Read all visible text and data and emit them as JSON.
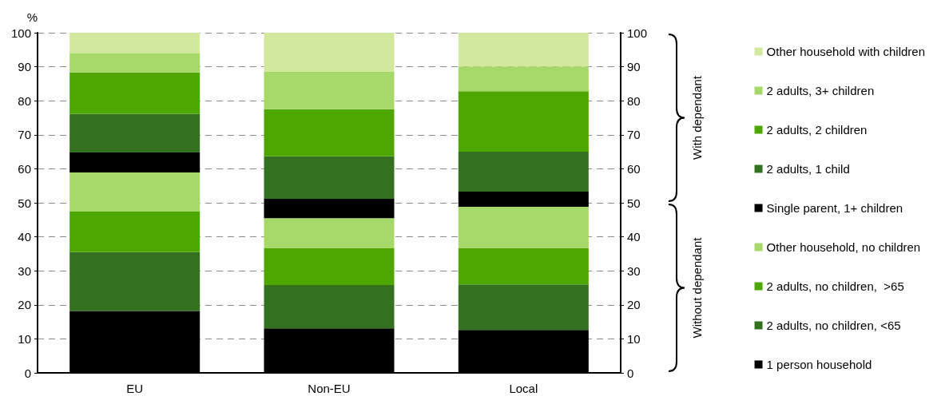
{
  "chart_data": {
    "type": "bar",
    "stacked": true,
    "ylabel": "%",
    "categories": [
      "EU",
      "Non-EU",
      "Local"
    ],
    "series": [
      {
        "name": "1 person household",
        "color": "#000000",
        "values": [
          18.2,
          13.1,
          12.6
        ]
      },
      {
        "name": "2 adults, no children, <65",
        "color": "#33701f",
        "values": [
          17.3,
          12.7,
          13.4
        ]
      },
      {
        "name": "2 adults, no children,  >65",
        "color": "#4ea700",
        "values": [
          11.9,
          10.8,
          10.6
        ]
      },
      {
        "name": "Other household, no children",
        "color": "#a6d96a",
        "values": [
          11.5,
          8.9,
          12.2
        ]
      },
      {
        "name": "Single parent, 1+ children",
        "color": "#000000",
        "values": [
          5.9,
          5.7,
          4.5
        ]
      },
      {
        "name": "2 adults, 1 child",
        "color": "#33701f",
        "values": [
          11.3,
          12.5,
          11.7
        ]
      },
      {
        "name": "2 adults, 2 children",
        "color": "#4ea700",
        "values": [
          12.2,
          13.8,
          17.8
        ]
      },
      {
        "name": "2 adults, 3+ children",
        "color": "#a6d96a",
        "values": [
          5.6,
          11.0,
          7.3
        ]
      },
      {
        "name": "Other household with children",
        "color": "#d2e89d",
        "values": [
          6.1,
          11.5,
          9.9
        ]
      }
    ],
    "ylim": [
      0,
      100
    ],
    "yticks": [
      0,
      10,
      20,
      30,
      40,
      50,
      60,
      70,
      80,
      90,
      100
    ],
    "y2lim": [
      0,
      100
    ],
    "y2ticks": [
      0,
      10,
      20,
      30,
      40,
      50,
      60,
      70,
      80,
      90,
      100
    ],
    "annotations": [
      "With dependant",
      "Without dependant"
    ],
    "grid": "y",
    "legend": "right"
  }
}
